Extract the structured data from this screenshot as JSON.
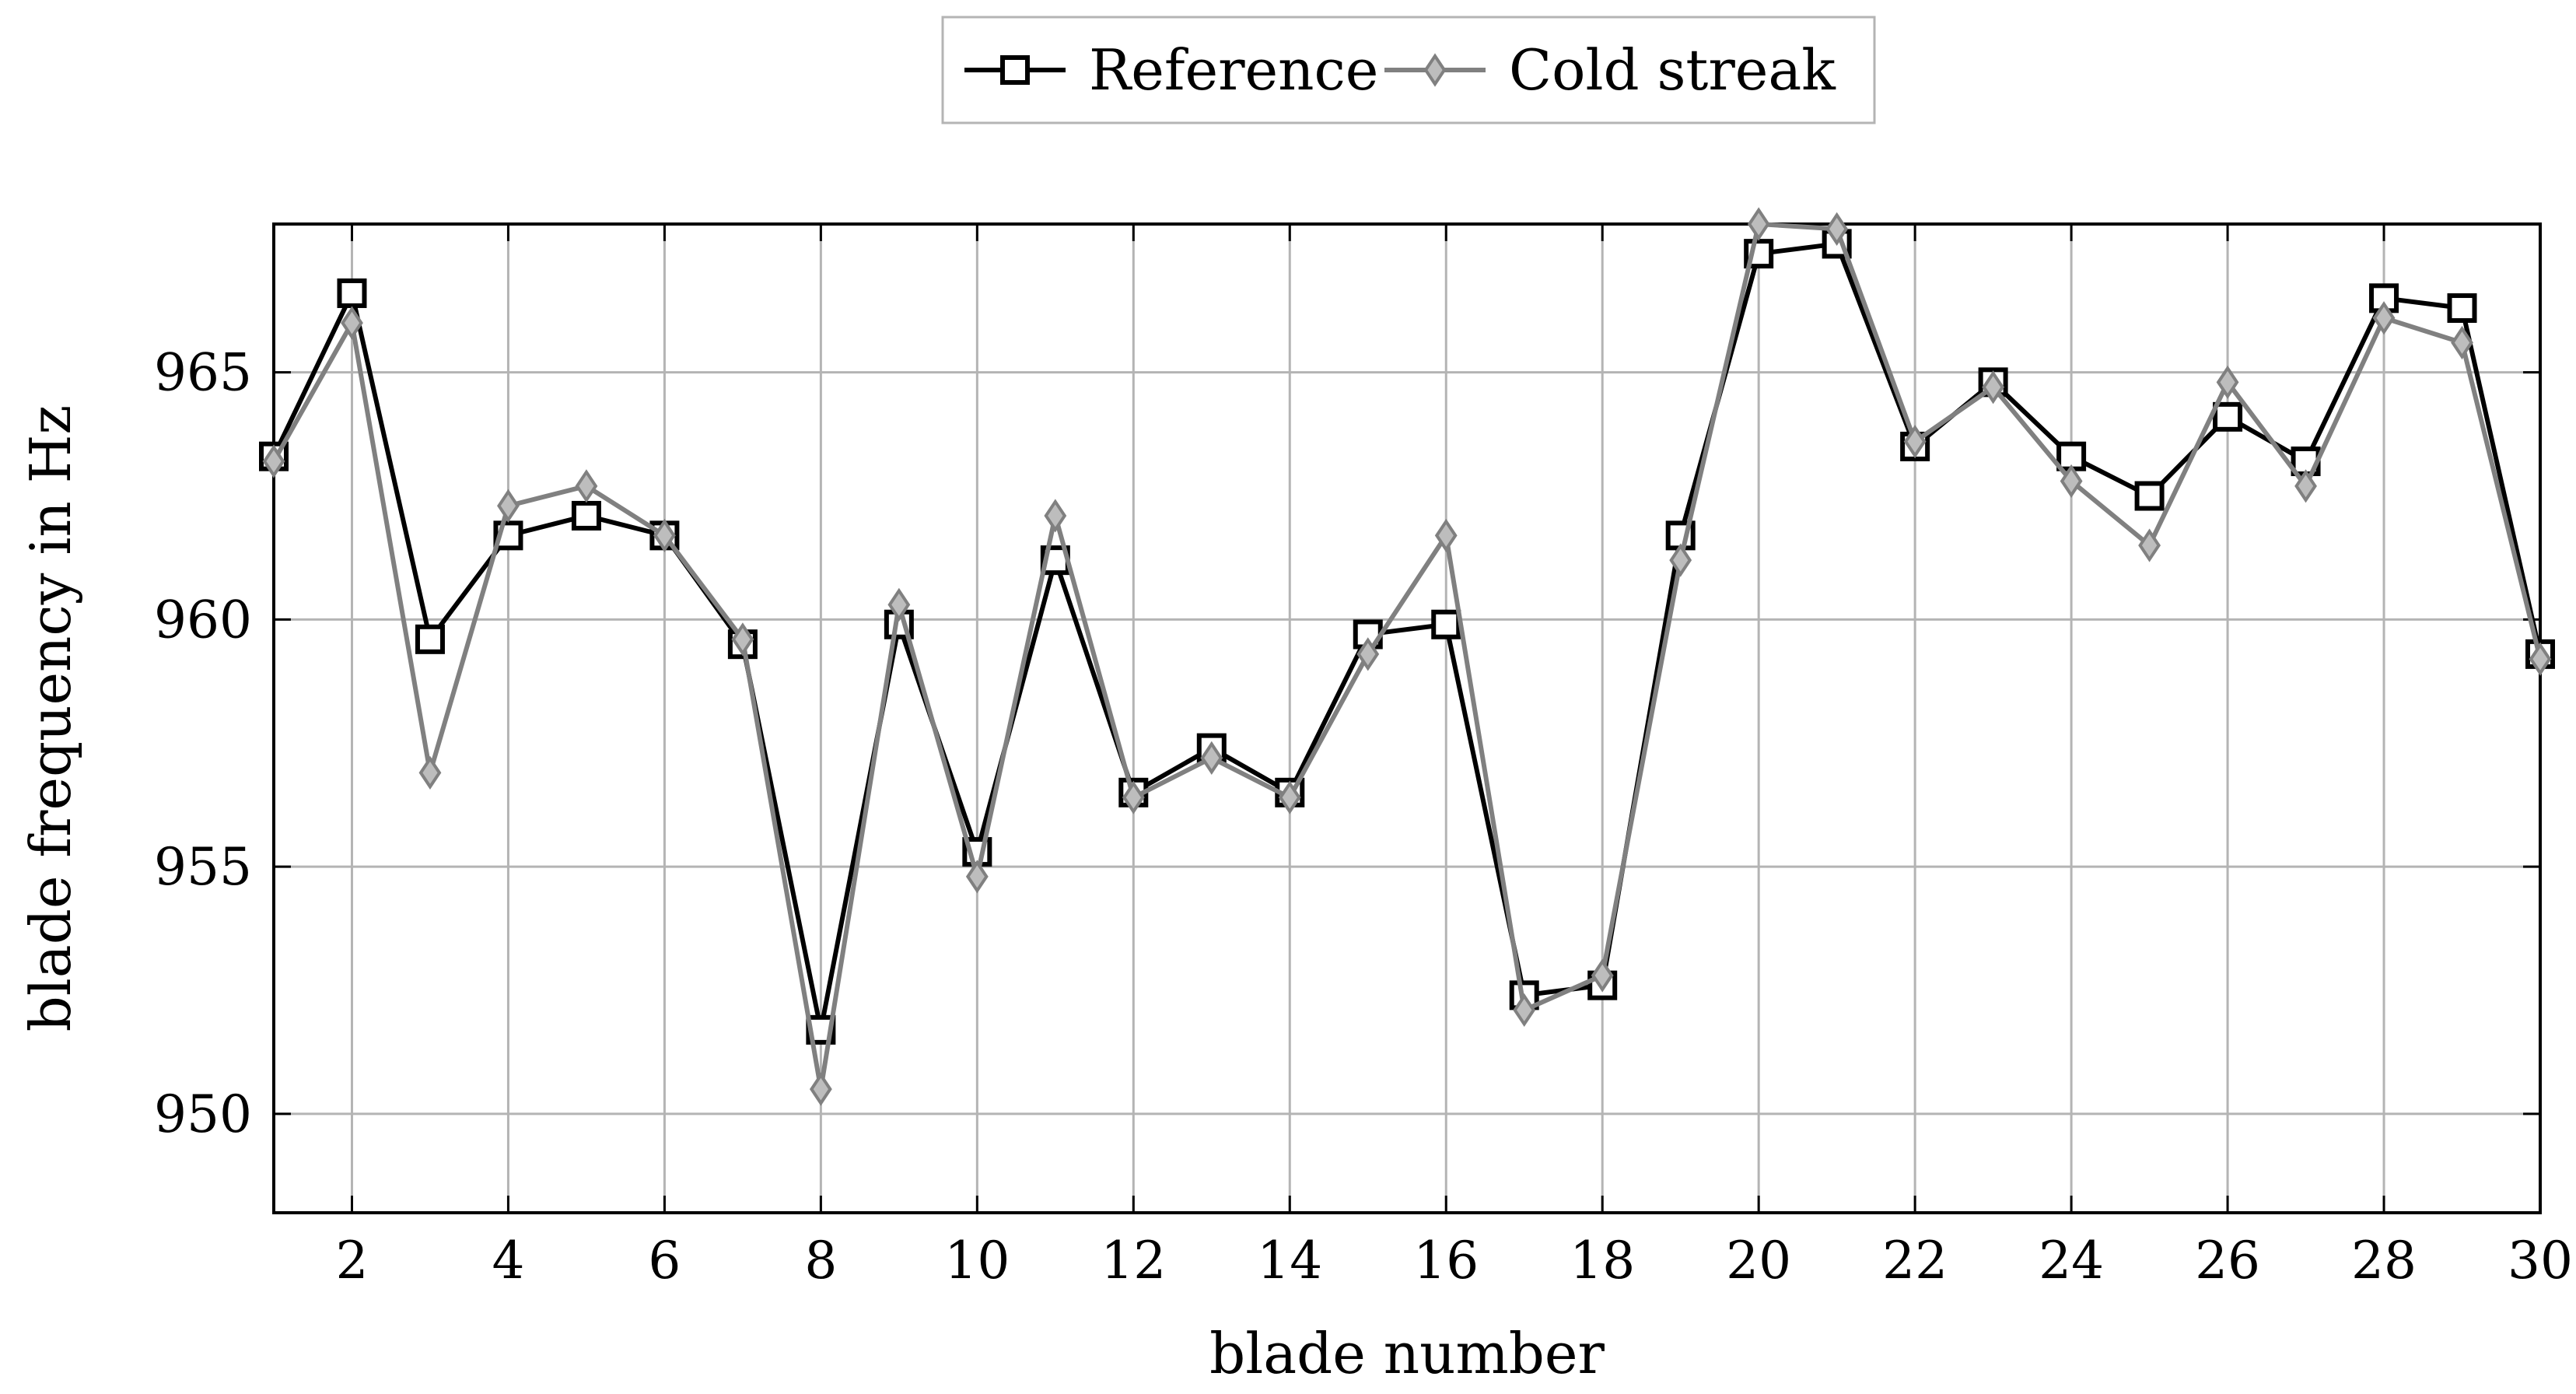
{
  "chart_data": {
    "type": "line",
    "xlabel": "blade number",
    "ylabel": "blade frequency in Hz",
    "xlim": [
      1,
      30
    ],
    "ylim": [
      948,
      968
    ],
    "xticks": [
      2,
      4,
      6,
      8,
      10,
      12,
      14,
      16,
      18,
      20,
      22,
      24,
      26,
      28,
      30
    ],
    "yticks": [
      950,
      955,
      960,
      965
    ],
    "grid": true,
    "legend_position": "top-center",
    "x": [
      1,
      2,
      3,
      4,
      5,
      6,
      7,
      8,
      9,
      10,
      11,
      12,
      13,
      14,
      15,
      16,
      17,
      18,
      19,
      20,
      21,
      22,
      23,
      24,
      25,
      26,
      27,
      28,
      29,
      30
    ],
    "series": [
      {
        "name": "Reference",
        "color": "#000000",
        "marker": "square",
        "values": [
          963.3,
          966.6,
          959.6,
          961.7,
          962.1,
          961.7,
          959.5,
          951.7,
          959.9,
          955.3,
          961.2,
          956.5,
          957.4,
          956.5,
          959.7,
          959.9,
          952.4,
          952.6,
          961.7,
          967.4,
          967.6,
          963.5,
          964.8,
          963.3,
          962.5,
          964.1,
          963.2,
          966.5,
          966.3,
          959.3
        ]
      },
      {
        "name": "Cold streak",
        "color": "#808080",
        "marker": "diamond",
        "values": [
          963.2,
          966.0,
          956.9,
          962.3,
          962.7,
          961.7,
          959.6,
          950.5,
          960.3,
          954.8,
          962.1,
          956.4,
          957.2,
          956.4,
          959.3,
          961.7,
          952.1,
          952.8,
          961.2,
          968.0,
          967.9,
          963.6,
          964.7,
          962.8,
          961.5,
          964.8,
          962.7,
          966.1,
          965.6,
          959.2
        ]
      }
    ]
  }
}
